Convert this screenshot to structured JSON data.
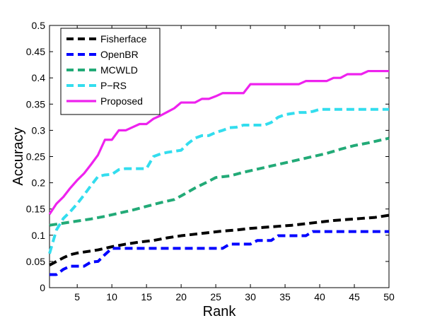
{
  "chart_data": {
    "type": "line",
    "title": "",
    "xlabel": "Rank",
    "ylabel": "Accuracy",
    "xlim": [
      1,
      50
    ],
    "ylim": [
      0,
      0.5
    ],
    "xticks": [
      5,
      10,
      15,
      20,
      25,
      30,
      35,
      40,
      45,
      50
    ],
    "yticks": [
      0,
      0.05,
      0.1,
      0.15,
      0.2,
      0.25,
      0.3,
      0.35,
      0.4,
      0.45,
      0.5
    ],
    "ytick_labels": [
      "0",
      "0.05",
      "0.1",
      "0.15",
      "0.2",
      "0.25",
      "0.3",
      "0.35",
      "0.4",
      "0.45",
      "0.5"
    ],
    "grid": false,
    "legend_position": "top-left",
    "series": [
      {
        "name": "Fisherface",
        "color": "#000000",
        "style": "dashed",
        "points": [
          [
            1,
            0.043
          ],
          [
            2,
            0.05
          ],
          [
            3,
            0.057
          ],
          [
            4,
            0.063
          ],
          [
            5,
            0.066
          ],
          [
            6,
            0.068
          ],
          [
            7,
            0.07
          ],
          [
            8,
            0.072
          ],
          [
            9,
            0.075
          ],
          [
            10,
            0.078
          ],
          [
            12,
            0.083
          ],
          [
            14,
            0.087
          ],
          [
            16,
            0.09
          ],
          [
            18,
            0.095
          ],
          [
            20,
            0.099
          ],
          [
            22,
            0.102
          ],
          [
            24,
            0.105
          ],
          [
            26,
            0.108
          ],
          [
            28,
            0.11
          ],
          [
            30,
            0.113
          ],
          [
            32,
            0.115
          ],
          [
            34,
            0.117
          ],
          [
            36,
            0.119
          ],
          [
            38,
            0.122
          ],
          [
            40,
            0.125
          ],
          [
            42,
            0.128
          ],
          [
            44,
            0.13
          ],
          [
            46,
            0.132
          ],
          [
            48,
            0.134
          ],
          [
            50,
            0.138
          ]
        ]
      },
      {
        "name": "OpenBR",
        "color": "#0000ff",
        "style": "dashed",
        "points": [
          [
            1,
            0.025
          ],
          [
            2,
            0.025
          ],
          [
            3,
            0.035
          ],
          [
            4,
            0.041
          ],
          [
            5,
            0.041
          ],
          [
            6,
            0.041
          ],
          [
            7,
            0.049
          ],
          [
            8,
            0.05
          ],
          [
            9,
            0.063
          ],
          [
            10,
            0.075
          ],
          [
            12,
            0.075
          ],
          [
            14,
            0.075
          ],
          [
            16,
            0.075
          ],
          [
            18,
            0.075
          ],
          [
            20,
            0.075
          ],
          [
            22,
            0.075
          ],
          [
            24,
            0.075
          ],
          [
            26,
            0.075
          ],
          [
            27,
            0.083
          ],
          [
            28,
            0.083
          ],
          [
            30,
            0.083
          ],
          [
            31,
            0.09
          ],
          [
            33,
            0.09
          ],
          [
            34,
            0.099
          ],
          [
            36,
            0.099
          ],
          [
            38,
            0.099
          ],
          [
            39,
            0.107
          ],
          [
            41,
            0.107
          ],
          [
            44,
            0.107
          ],
          [
            47,
            0.107
          ],
          [
            50,
            0.107
          ]
        ]
      },
      {
        "name": "MCWLD",
        "color": "#22aa77",
        "style": "dashed",
        "points": [
          [
            1,
            0.119
          ],
          [
            3,
            0.123
          ],
          [
            5,
            0.127
          ],
          [
            7,
            0.131
          ],
          [
            9,
            0.136
          ],
          [
            11,
            0.142
          ],
          [
            13,
            0.148
          ],
          [
            15,
            0.155
          ],
          [
            17,
            0.162
          ],
          [
            19,
            0.168
          ],
          [
            20,
            0.175
          ],
          [
            22,
            0.19
          ],
          [
            24,
            0.203
          ],
          [
            25,
            0.21
          ],
          [
            27,
            0.213
          ],
          [
            29,
            0.22
          ],
          [
            31,
            0.226
          ],
          [
            33,
            0.232
          ],
          [
            35,
            0.238
          ],
          [
            37,
            0.244
          ],
          [
            39,
            0.25
          ],
          [
            41,
            0.256
          ],
          [
            43,
            0.264
          ],
          [
            45,
            0.271
          ],
          [
            47,
            0.276
          ],
          [
            50,
            0.285
          ]
        ]
      },
      {
        "name": "P−RS",
        "color": "#33ddee",
        "style": "dashed",
        "points": [
          [
            1,
            0.065
          ],
          [
            2,
            0.11
          ],
          [
            3,
            0.132
          ],
          [
            4,
            0.145
          ],
          [
            5,
            0.16
          ],
          [
            6,
            0.177
          ],
          [
            7,
            0.195
          ],
          [
            8,
            0.212
          ],
          [
            9,
            0.215
          ],
          [
            10,
            0.216
          ],
          [
            11,
            0.225
          ],
          [
            12,
            0.227
          ],
          [
            13,
            0.227
          ],
          [
            14,
            0.227
          ],
          [
            15,
            0.227
          ],
          [
            16,
            0.25
          ],
          [
            17,
            0.255
          ],
          [
            18,
            0.258
          ],
          [
            19,
            0.26
          ],
          [
            20,
            0.262
          ],
          [
            21,
            0.275
          ],
          [
            22,
            0.285
          ],
          [
            23,
            0.29
          ],
          [
            24,
            0.29
          ],
          [
            25,
            0.296
          ],
          [
            26,
            0.3
          ],
          [
            27,
            0.305
          ],
          [
            28,
            0.306
          ],
          [
            29,
            0.31
          ],
          [
            30,
            0.31
          ],
          [
            31,
            0.31
          ],
          [
            32,
            0.31
          ],
          [
            33,
            0.315
          ],
          [
            34,
            0.325
          ],
          [
            35,
            0.33
          ],
          [
            36,
            0.332
          ],
          [
            37,
            0.334
          ],
          [
            38,
            0.334
          ],
          [
            39,
            0.336
          ],
          [
            40,
            0.34
          ],
          [
            42,
            0.34
          ],
          [
            44,
            0.34
          ],
          [
            46,
            0.34
          ],
          [
            48,
            0.34
          ],
          [
            50,
            0.34
          ]
        ]
      },
      {
        "name": "Proposed",
        "color": "#ee22ee",
        "style": "solid",
        "points": [
          [
            1,
            0.14
          ],
          [
            2,
            0.16
          ],
          [
            3,
            0.173
          ],
          [
            4,
            0.19
          ],
          [
            5,
            0.205
          ],
          [
            6,
            0.218
          ],
          [
            7,
            0.235
          ],
          [
            8,
            0.253
          ],
          [
            9,
            0.282
          ],
          [
            10,
            0.282
          ],
          [
            11,
            0.3
          ],
          [
            12,
            0.3
          ],
          [
            13,
            0.306
          ],
          [
            14,
            0.312
          ],
          [
            15,
            0.312
          ],
          [
            16,
            0.322
          ],
          [
            17,
            0.328
          ],
          [
            18,
            0.335
          ],
          [
            19,
            0.342
          ],
          [
            20,
            0.353
          ],
          [
            21,
            0.353
          ],
          [
            22,
            0.353
          ],
          [
            23,
            0.36
          ],
          [
            24,
            0.36
          ],
          [
            25,
            0.365
          ],
          [
            26,
            0.371
          ],
          [
            27,
            0.371
          ],
          [
            28,
            0.371
          ],
          [
            29,
            0.371
          ],
          [
            30,
            0.388
          ],
          [
            31,
            0.388
          ],
          [
            32,
            0.388
          ],
          [
            33,
            0.388
          ],
          [
            34,
            0.388
          ],
          [
            35,
            0.388
          ],
          [
            36,
            0.388
          ],
          [
            37,
            0.388
          ],
          [
            38,
            0.394
          ],
          [
            39,
            0.394
          ],
          [
            40,
            0.394
          ],
          [
            41,
            0.394
          ],
          [
            42,
            0.4
          ],
          [
            43,
            0.4
          ],
          [
            44,
            0.407
          ],
          [
            45,
            0.407
          ],
          [
            46,
            0.407
          ],
          [
            47,
            0.413
          ],
          [
            48,
            0.413
          ],
          [
            49,
            0.413
          ],
          [
            50,
            0.413
          ]
        ]
      }
    ]
  }
}
